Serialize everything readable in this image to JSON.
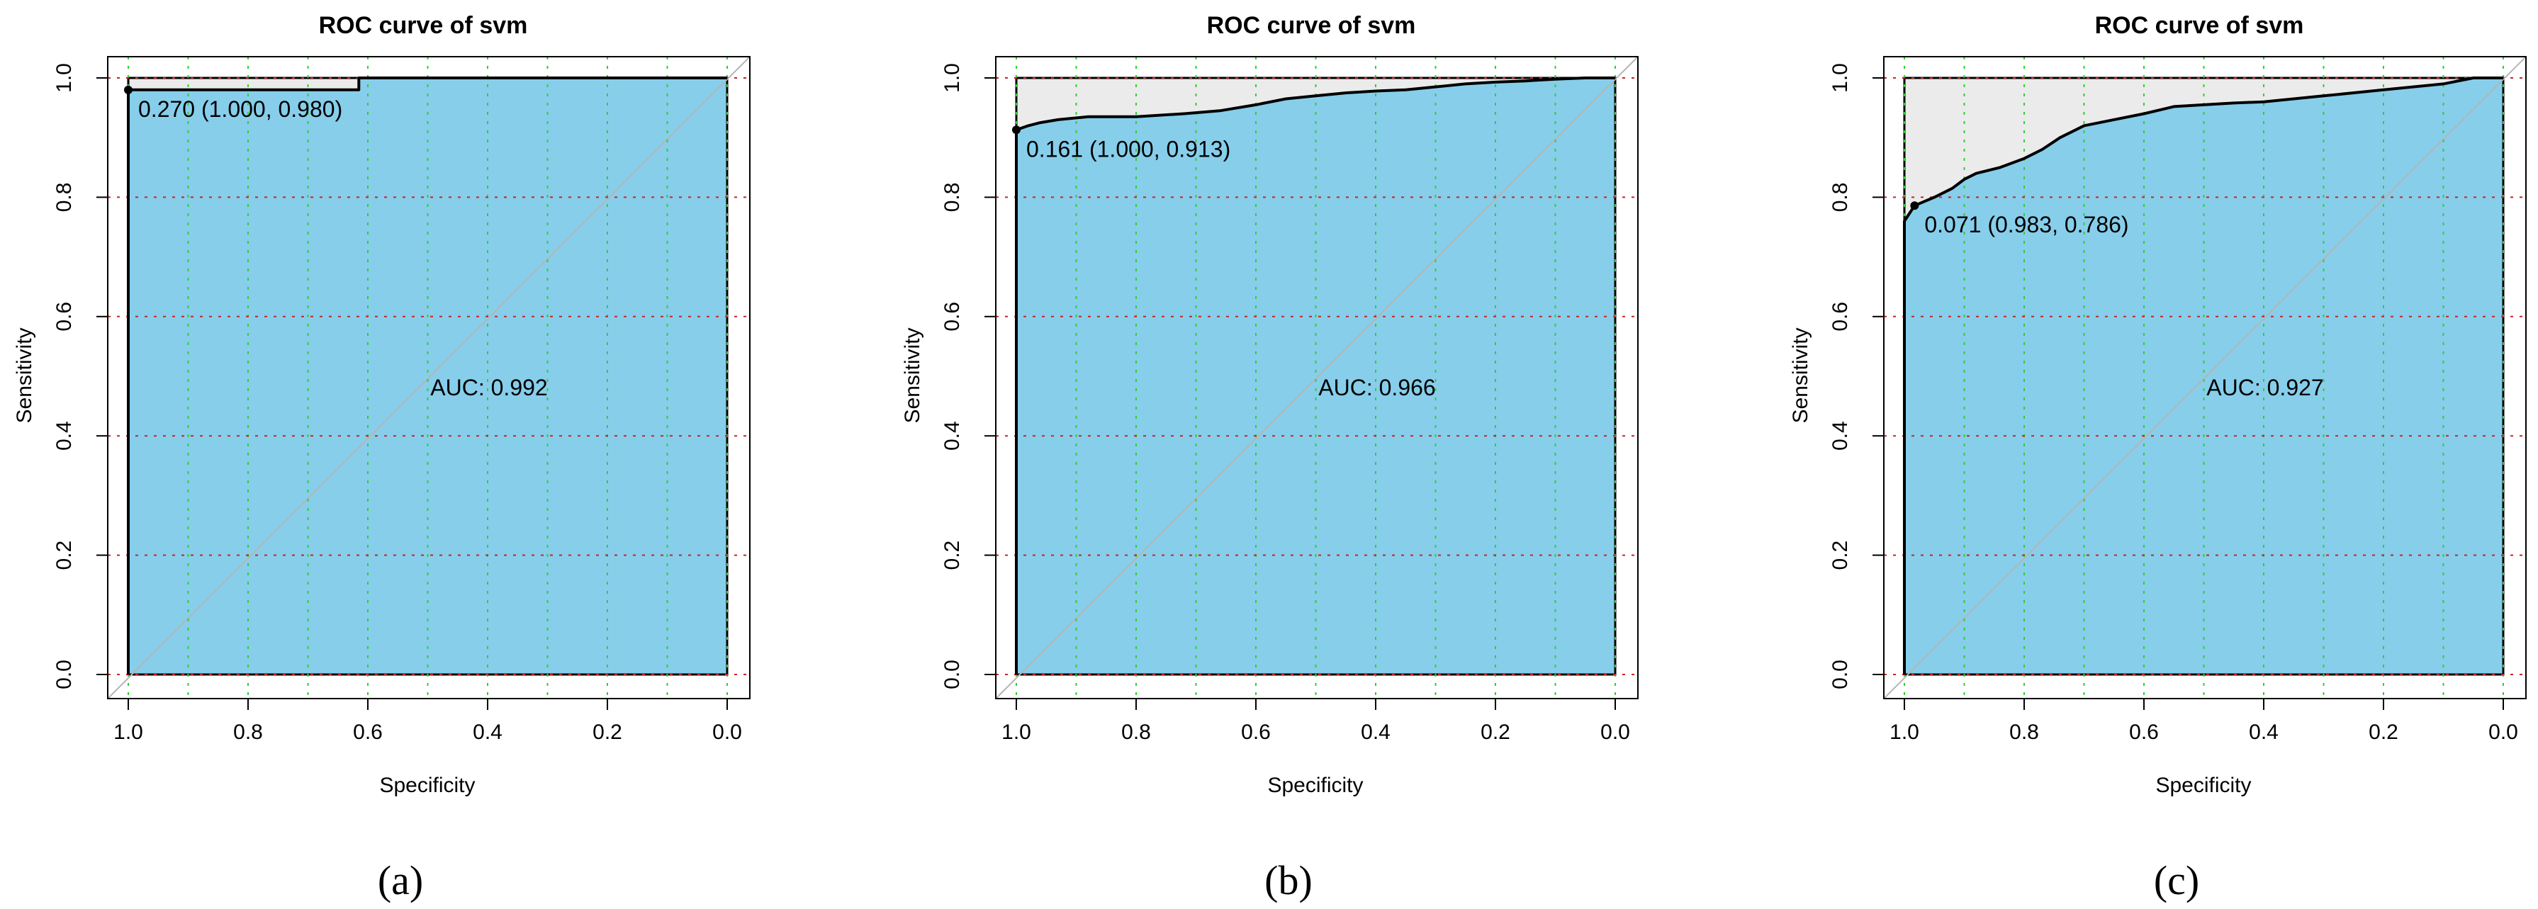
{
  "chart_data": [
    {
      "panel": "a",
      "type": "line",
      "title": "ROC curve of svm",
      "xlabel": "Specificity",
      "ylabel": "Sensitivity",
      "xlim": [
        1.0,
        0.0
      ],
      "ylim": [
        0.0,
        1.0
      ],
      "x_ticks": [
        "1.0",
        "0.8",
        "0.6",
        "0.4",
        "0.2",
        "0.0"
      ],
      "y_ticks": [
        "0.0",
        "0.2",
        "0.4",
        "0.6",
        "0.8",
        "1.0"
      ],
      "grid": true,
      "auc_label": "AUC: 0.992",
      "threshold_label": "0.270 (1.000, 0.980)",
      "threshold_point": {
        "specificity": 1.0,
        "sensitivity": 0.98
      },
      "series": [
        {
          "name": "ROC",
          "specificity": [
            1.0,
            1.0,
            0.615,
            0.615,
            0.0
          ],
          "sensitivity": [
            0.0,
            0.98,
            0.98,
            1.0,
            1.0
          ]
        }
      ],
      "caption": "(a)"
    },
    {
      "panel": "b",
      "type": "line",
      "title": "ROC curve of svm",
      "xlabel": "Specificity",
      "ylabel": "Sensitivity",
      "xlim": [
        1.0,
        0.0
      ],
      "ylim": [
        0.0,
        1.0
      ],
      "x_ticks": [
        "1.0",
        "0.8",
        "0.6",
        "0.4",
        "0.2",
        "0.0"
      ],
      "y_ticks": [
        "0.0",
        "0.2",
        "0.4",
        "0.6",
        "0.8",
        "1.0"
      ],
      "grid": true,
      "auc_label": "AUC: 0.966",
      "threshold_label": "0.161 (1.000, 0.913)",
      "threshold_point": {
        "specificity": 1.0,
        "sensitivity": 0.913
      },
      "series": [
        {
          "name": "ROC",
          "specificity": [
            1.0,
            1.0,
            0.98,
            0.96,
            0.93,
            0.88,
            0.8,
            0.72,
            0.66,
            0.6,
            0.55,
            0.5,
            0.45,
            0.4,
            0.35,
            0.3,
            0.25,
            0.2,
            0.15,
            0.1,
            0.05,
            0.0
          ],
          "sensitivity": [
            0.0,
            0.913,
            0.92,
            0.925,
            0.93,
            0.935,
            0.935,
            0.94,
            0.945,
            0.955,
            0.965,
            0.97,
            0.975,
            0.978,
            0.98,
            0.985,
            0.99,
            0.993,
            0.995,
            0.998,
            1.0,
            1.0
          ]
        }
      ],
      "caption": "(b)"
    },
    {
      "panel": "c",
      "type": "line",
      "title": "ROC curve of svm",
      "xlabel": "Specificity",
      "ylabel": "Sensitivity",
      "xlim": [
        1.0,
        0.0
      ],
      "ylim": [
        0.0,
        1.0
      ],
      "x_ticks": [
        "1.0",
        "0.8",
        "0.6",
        "0.4",
        "0.2",
        "0.0"
      ],
      "y_ticks": [
        "0.0",
        "0.2",
        "0.4",
        "0.6",
        "0.8",
        "1.0"
      ],
      "grid": true,
      "auc_label": "AUC: 0.927",
      "threshold_label": "0.071 (0.983, 0.786)",
      "threshold_point": {
        "specificity": 0.983,
        "sensitivity": 0.786
      },
      "series": [
        {
          "name": "ROC",
          "specificity": [
            1.0,
            1.0,
            0.983,
            0.95,
            0.92,
            0.9,
            0.88,
            0.84,
            0.8,
            0.77,
            0.74,
            0.7,
            0.65,
            0.6,
            0.55,
            0.5,
            0.45,
            0.4,
            0.3,
            0.2,
            0.1,
            0.05,
            0.0
          ],
          "sensitivity": [
            0.0,
            0.76,
            0.786,
            0.8,
            0.815,
            0.83,
            0.84,
            0.85,
            0.865,
            0.88,
            0.9,
            0.92,
            0.93,
            0.94,
            0.952,
            0.955,
            0.958,
            0.96,
            0.97,
            0.98,
            0.99,
            1.0,
            1.0
          ]
        }
      ],
      "caption": "(c)"
    }
  ],
  "colors": {
    "auc_fill": "#87CEEB",
    "upper_fill": "#EBEBEB",
    "curve": "#000000",
    "diagonal": "#B5B5B5",
    "grid_x": "#33CC33",
    "grid_y": "#CC2222"
  }
}
